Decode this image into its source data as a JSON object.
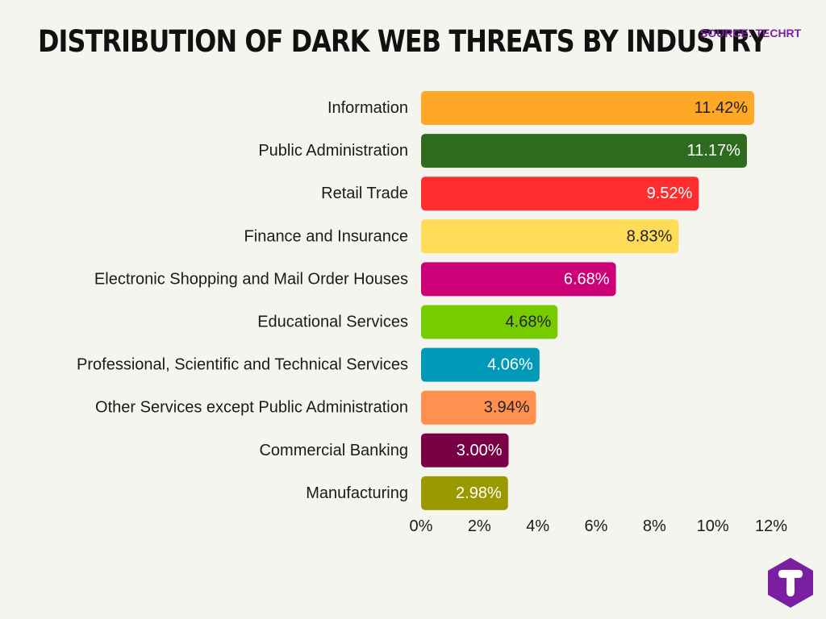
{
  "title": "DISTRIBUTION OF DARK WEB THREATS BY INDUSTRY",
  "source": "SOURCE: TECHRT",
  "colors": {
    "background": "#f5f5f0",
    "source_text": "#7a1fa2",
    "logo": "#7a1fa2"
  },
  "logo_icon": "techrt-logo-icon",
  "chart_data": {
    "type": "bar",
    "orientation": "horizontal",
    "categories": [
      "Information",
      "Public Administration",
      "Retail Trade",
      "Finance and Insurance",
      "Electronic Shopping and Mail Order Houses",
      "Educational Services",
      "Professional, Scientific and Technical Services",
      "Other Services except Public Administration",
      "Commercial Banking",
      "Manufacturing"
    ],
    "values": [
      11.42,
      11.17,
      9.52,
      8.83,
      6.68,
      4.68,
      4.06,
      3.94,
      3.0,
      2.98
    ],
    "value_labels": [
      "11.42%",
      "11.17%",
      "9.52%",
      "8.83%",
      "6.68%",
      "4.68%",
      "4.06%",
      "3.94%",
      "3.00%",
      "2.98%"
    ],
    "bar_colors": [
      "#ffa726",
      "#2e6b1f",
      "#ff2d2d",
      "#ffdb58",
      "#cc0077",
      "#77cc00",
      "#0099b8",
      "#ff9050",
      "#7a0045",
      "#999900"
    ],
    "label_colors": [
      "#222222",
      "#ffffff",
      "#ffffff",
      "#222222",
      "#ffffff",
      "#222222",
      "#ffffff",
      "#222222",
      "#ffffff",
      "#ffffff"
    ],
    "xlim": [
      0,
      12
    ],
    "xticks": [
      "0%",
      "2%",
      "4%",
      "6%",
      "8%",
      "10%",
      "12%"
    ],
    "xlabel": "",
    "ylabel": "",
    "grid": false
  }
}
